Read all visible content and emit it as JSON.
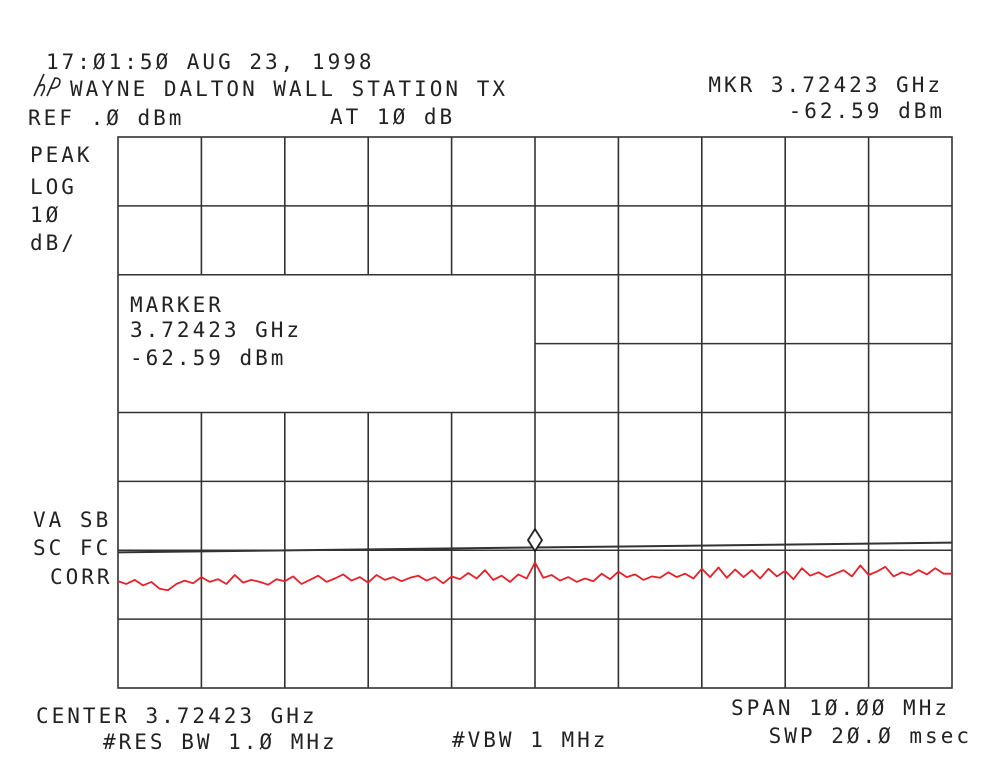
{
  "header": {
    "timestamp": "17:Ø1:5Ø AUG 23, 1998",
    "logo": "hp",
    "title": "WAYNE DALTON WALL STATION TX",
    "ref_level": "REF .Ø dBm",
    "attenuation": "AT 1Ø dB",
    "marker_freq": "MKR 3.72423 GHz",
    "marker_level": "-62.59 dBm"
  },
  "left_labels": {
    "detector": "PEAK",
    "scale": "LOG",
    "scale_value": "1Ø",
    "scale_unit": "dB/",
    "flag1": "VA SB",
    "flag2": "SC FC",
    "flag3": "CORR"
  },
  "marker_box": {
    "title": "MARKER",
    "freq": "3.72423 GHz",
    "level": "-62.59 dBm"
  },
  "footer": {
    "center": "CENTER 3.72423 GHz",
    "res_bw": "#RES BW 1.Ø MHz",
    "vbw": "#VBW 1 MHz",
    "span": "SPAN 1Ø.ØØ MHz",
    "sweep": "SWP 2Ø.Ø msec"
  },
  "chart_data": {
    "type": "line",
    "xlabel": "CENTER 3.72423 GHz / SPAN 1Ø.ØØ MHz",
    "ylabel": "REF .Ø dBm, 1Ø dB/",
    "x_unit": "GHz",
    "y_unit": "dBm",
    "xlim": [
      3.71923,
      3.72923
    ],
    "ylim": [
      -80,
      0
    ],
    "x_divisions": 10,
    "y_divisions": 8,
    "grid": true,
    "trace_color": "#e8202a",
    "display_line_dbm": [
      -60.3,
      -58.9
    ],
    "marker": {
      "x": 3.72423,
      "y": -62.59
    },
    "series": [
      {
        "values": [
          -64.5,
          -64.9,
          -64.3,
          -65.1,
          -64.6,
          -65.6,
          -65.8,
          -64.9,
          -64.4,
          -64.8,
          -63.9,
          -64.6,
          -64.2,
          -64.9,
          -63.6,
          -64.7,
          -64.3,
          -64.6,
          -65.0,
          -64.2,
          -64.5,
          -63.8,
          -64.9,
          -64.3,
          -63.7,
          -64.6,
          -64.1,
          -63.5,
          -64.4,
          -63.9,
          -64.7,
          -63.6,
          -64.3,
          -63.9,
          -64.5,
          -64.0,
          -63.7,
          -64.4,
          -63.9,
          -64.8,
          -63.8,
          -64.2,
          -63.3,
          -64.1,
          -62.9,
          -64.3,
          -63.7,
          -64.6,
          -63.5,
          -64.1,
          -61.8,
          -64.0,
          -63.6,
          -64.4,
          -63.9,
          -64.6,
          -64.1,
          -64.5,
          -63.4,
          -64.2,
          -63.1,
          -63.9,
          -63.5,
          -64.3,
          -63.8,
          -64.0,
          -63.2,
          -63.9,
          -63.4,
          -64.1,
          -62.7,
          -63.9,
          -62.5,
          -64.0,
          -62.8,
          -63.9,
          -62.9,
          -64.1,
          -62.7,
          -63.8,
          -63.0,
          -64.2,
          -62.6,
          -63.7,
          -63.2,
          -63.9,
          -63.4,
          -62.9,
          -63.8,
          -62.2,
          -63.6,
          -63.1,
          -62.4,
          -63.8,
          -63.2,
          -63.6,
          -62.9,
          -63.5,
          -62.6,
          -63.4,
          -63.4
        ]
      }
    ]
  }
}
